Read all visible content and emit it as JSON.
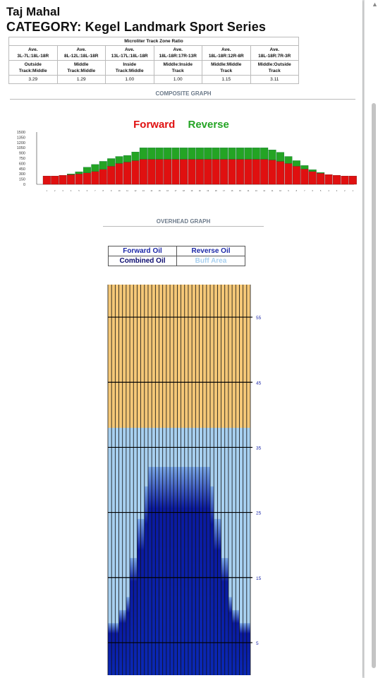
{
  "header": {
    "title": "Taj Mahal",
    "category": "CATEGORY: Kegel Landmark Sport Series"
  },
  "ratio_table": {
    "caption": "Microliter Track Zone Ratio",
    "ranges": [
      "Ave.\n3L-7L:18L-18R",
      "Ave.\n8L-12L:18L-18R",
      "Ave.\n13L-17L:18L-18R",
      "Ave.\n18L-18R:17R-13R",
      "Ave.\n18L-18R:12R-8R",
      "Ave.\n18L-18R:7R-3R"
    ],
    "names": [
      "Outside\nTrack:Middle",
      "Middle\nTrack:Middle",
      "Inside\nTrack:Middle",
      "Middle:Inside\nTrack",
      "Middle:Middle\nTrack",
      "Middle:Outside\nTrack"
    ],
    "values": [
      "3.29",
      "1.29",
      "1.00",
      "1.00",
      "1.15",
      "3.11"
    ]
  },
  "composite": {
    "heading": "COMPOSITE GRAPH",
    "forward_label": "Forward",
    "reverse_label": "Reverse"
  },
  "overhead": {
    "heading": "OVERHEAD GRAPH",
    "legend": [
      "Forward Oil",
      "Reverse Oil",
      "Combined Oil",
      "Buff Area"
    ]
  },
  "colors": {
    "forward": "#e01010",
    "reverse": "#24a424",
    "forward_oil": "#0a28b4",
    "reverse_oil": "#0a0a6e",
    "combined_oil": "#0a1aa0",
    "buff": "#a8d0f0",
    "lane": "#f5c878",
    "legend_blue": "#1c28a8"
  },
  "chart_data": [
    {
      "type": "bar",
      "stacked": true,
      "y_ticks": [
        0,
        150,
        300,
        450,
        600,
        750,
        900,
        1050,
        1200,
        1350,
        1500
      ],
      "ylim": [
        0,
        1500
      ],
      "categories": [
        "1",
        "2",
        "3",
        "4",
        "5",
        "6",
        "7",
        "8",
        "9",
        "10",
        "11",
        "12",
        "13",
        "14",
        "15",
        "16",
        "17",
        "18",
        "19",
        "20",
        "19",
        "18",
        "17",
        "16",
        "15",
        "14",
        "13",
        "12",
        "11",
        "10",
        "9",
        "8",
        "7",
        "6",
        "5",
        "4",
        "3",
        "2",
        "1"
      ],
      "series": [
        {
          "name": "Forward",
          "values": [
            240,
            240,
            260,
            280,
            300,
            330,
            370,
            430,
            520,
            600,
            640,
            680,
            720,
            720,
            720,
            720,
            720,
            720,
            720,
            720,
            720,
            720,
            720,
            720,
            720,
            720,
            720,
            720,
            700,
            660,
            600,
            520,
            440,
            370,
            320,
            280,
            260,
            240,
            240
          ]
        },
        {
          "name": "Reverse",
          "values": [
            0,
            0,
            0,
            20,
            60,
            160,
            200,
            230,
            220,
            200,
            190,
            250,
            330,
            330,
            330,
            330,
            330,
            330,
            330,
            330,
            330,
            330,
            330,
            330,
            330,
            330,
            330,
            330,
            290,
            260,
            200,
            160,
            100,
            50,
            20,
            0,
            0,
            0,
            0
          ]
        }
      ]
    },
    {
      "type": "heatmap",
      "y_ticks": [
        5,
        15,
        25,
        35,
        45,
        55
      ],
      "ylim": [
        0,
        60
      ],
      "boards": 39,
      "lane_surface_length": 60,
      "buff_length": 38,
      "oil_boards": [
        {
          "from": 1,
          "to": 3,
          "length": 8
        },
        {
          "from": 4,
          "to": 5,
          "length": 10
        },
        {
          "from": 6,
          "to": 6,
          "length": 12
        },
        {
          "from": 7,
          "to": 8,
          "length": 18
        },
        {
          "from": 9,
          "to": 10,
          "length": 24
        },
        {
          "from": 11,
          "to": 11,
          "length": 29
        },
        {
          "from": 12,
          "to": 28,
          "length": 32
        },
        {
          "from": 29,
          "to": 29,
          "length": 29
        },
        {
          "from": 30,
          "to": 31,
          "length": 24
        },
        {
          "from": 32,
          "to": 33,
          "length": 18
        },
        {
          "from": 34,
          "to": 34,
          "length": 12
        },
        {
          "from": 35,
          "to": 36,
          "length": 10
        },
        {
          "from": 37,
          "to": 39,
          "length": 8
        }
      ]
    }
  ]
}
